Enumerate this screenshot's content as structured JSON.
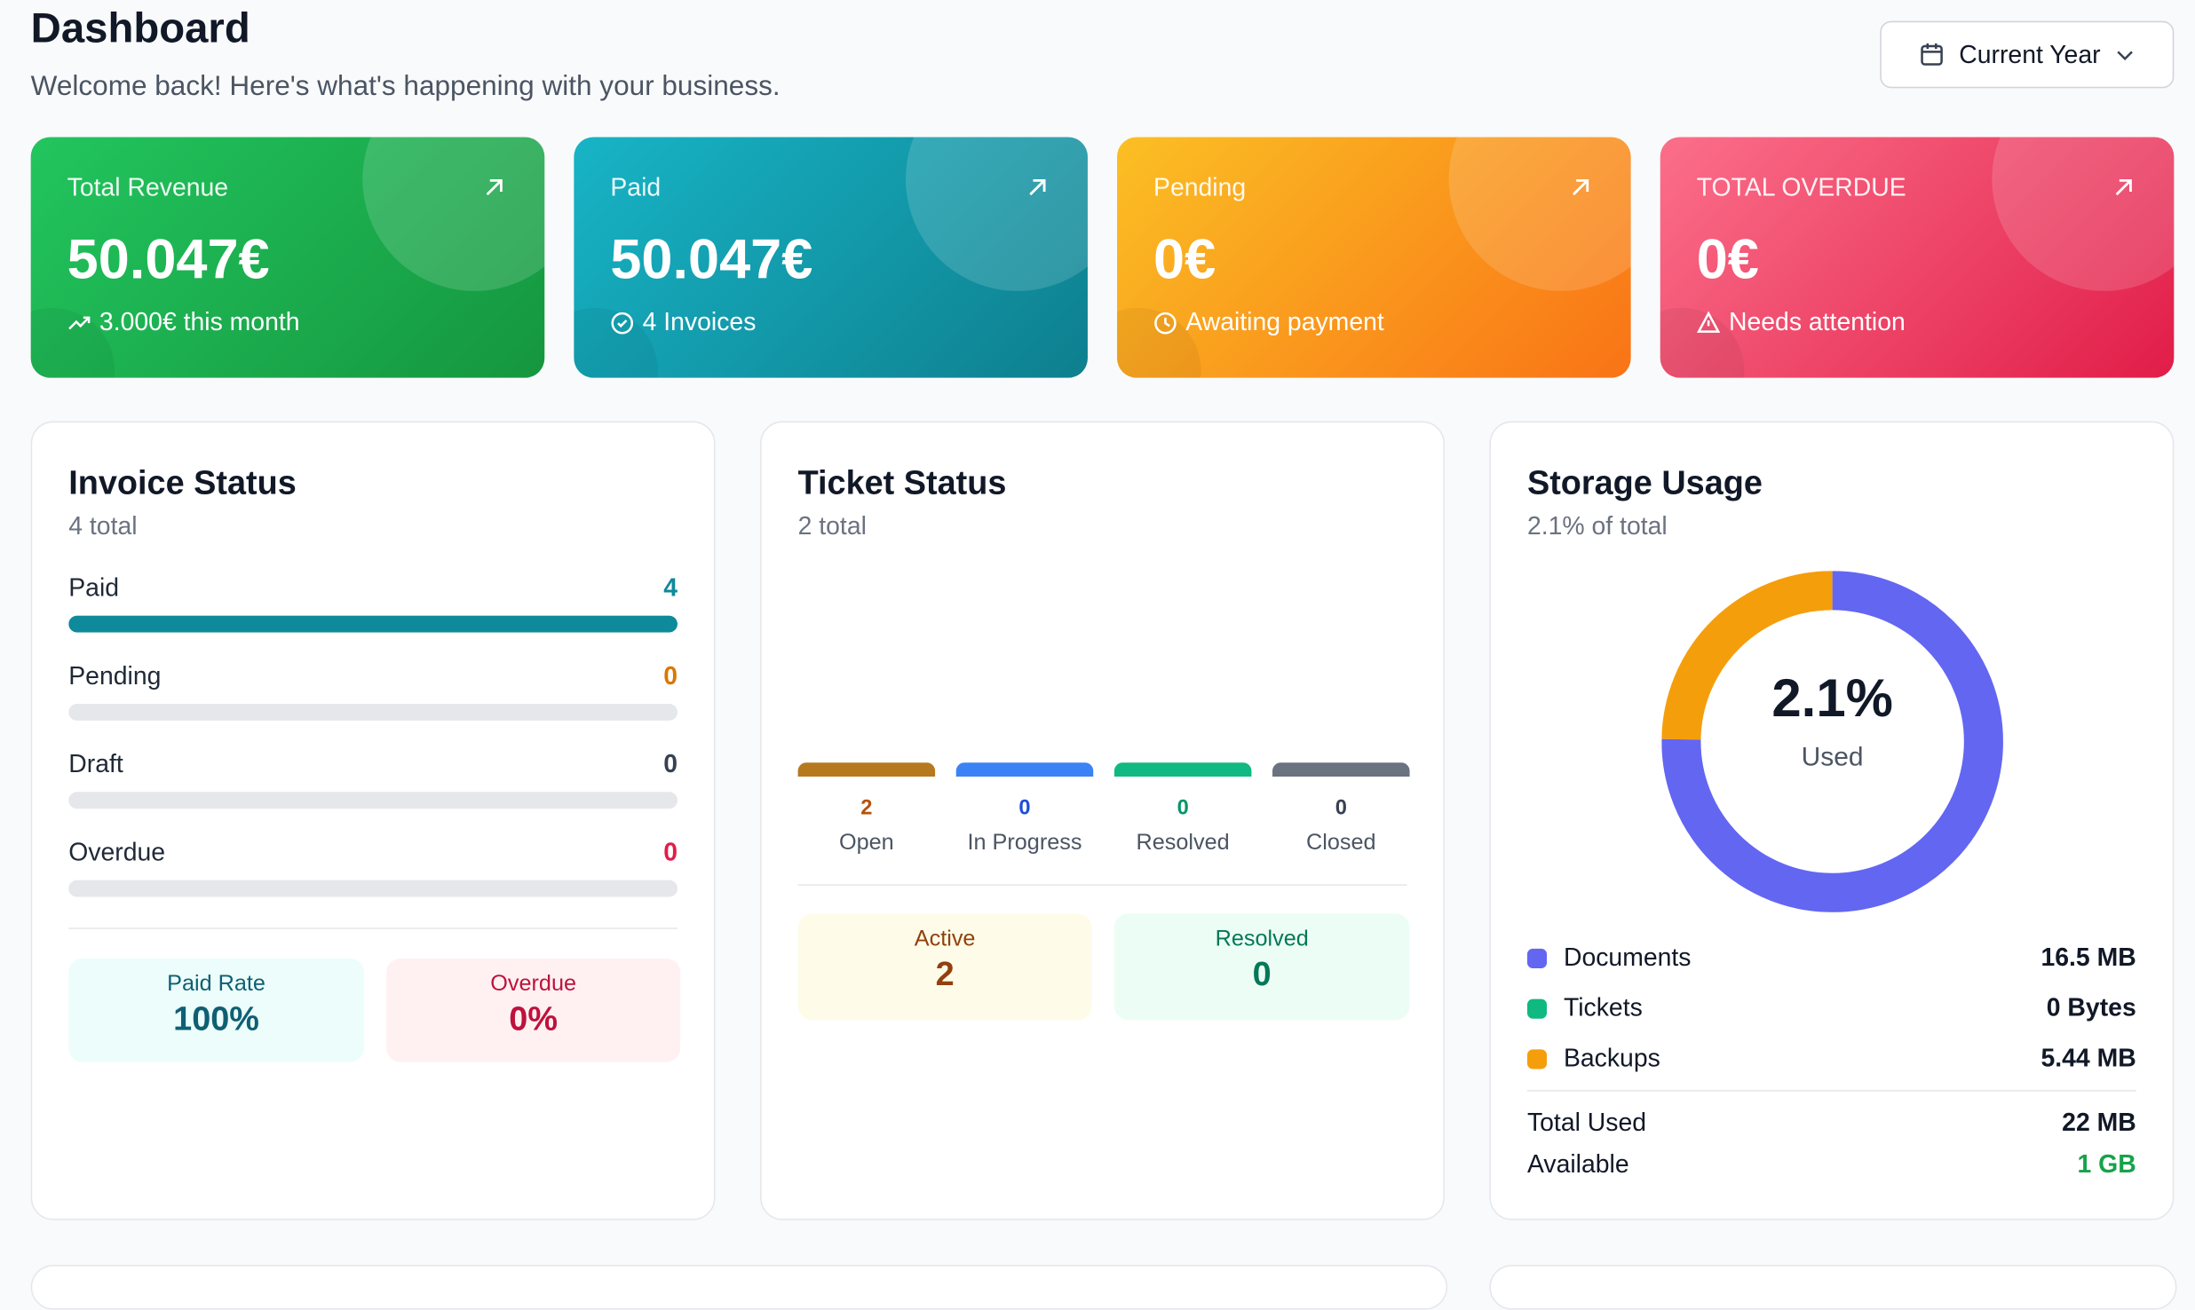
{
  "header": {
    "title": "Dashboard",
    "subtitle": "Welcome back! Here's what's happening with your business.",
    "period_button": "Current Year"
  },
  "stat_cards": [
    {
      "label": "Total Revenue",
      "value": "50.047€",
      "note": "3.000€ this month"
    },
    {
      "label": "Paid",
      "value": "50.047€",
      "note": "4 Invoices"
    },
    {
      "label": "Pending",
      "value": "0€",
      "note": "Awaiting payment"
    },
    {
      "label": "TOTAL OVERDUE",
      "value": "0€",
      "note": "Needs attention"
    }
  ],
  "invoice_status": {
    "title": "Invoice Status",
    "subtitle": "4 total",
    "rows": [
      {
        "label": "Paid",
        "count": 4
      },
      {
        "label": "Pending",
        "count": 0
      },
      {
        "label": "Draft",
        "count": 0
      },
      {
        "label": "Overdue",
        "count": 0
      }
    ],
    "summary": [
      {
        "label": "Paid Rate",
        "value": "100%"
      },
      {
        "label": "Overdue",
        "value": "0%"
      }
    ]
  },
  "ticket_status": {
    "title": "Ticket Status",
    "subtitle": "2 total",
    "columns": [
      {
        "label": "Open",
        "count": 2
      },
      {
        "label": "In Progress",
        "count": 0
      },
      {
        "label": "Resolved",
        "count": 0
      },
      {
        "label": "Closed",
        "count": 0
      }
    ],
    "summary": [
      {
        "label": "Active",
        "value": 2
      },
      {
        "label": "Resolved",
        "value": 0
      }
    ]
  },
  "storage_usage": {
    "title": "Storage Usage",
    "subtitle": "2.1% of total",
    "donut_value": "2.1%",
    "donut_label": "Used",
    "items": [
      {
        "label": "Documents",
        "size": {
          "value": 16.5,
          "label": "16.5 MB"
        }
      },
      {
        "label": "Tickets",
        "size": {
          "value": 0,
          "label": "0 Bytes"
        }
      },
      {
        "label": "Backups",
        "size": {
          "value": 5.44,
          "label": "5.44 MB"
        }
      }
    ],
    "totals": [
      {
        "label": "Total Used",
        "value": "22 MB"
      },
      {
        "label": "Available",
        "value": "1 GB"
      }
    ]
  }
}
